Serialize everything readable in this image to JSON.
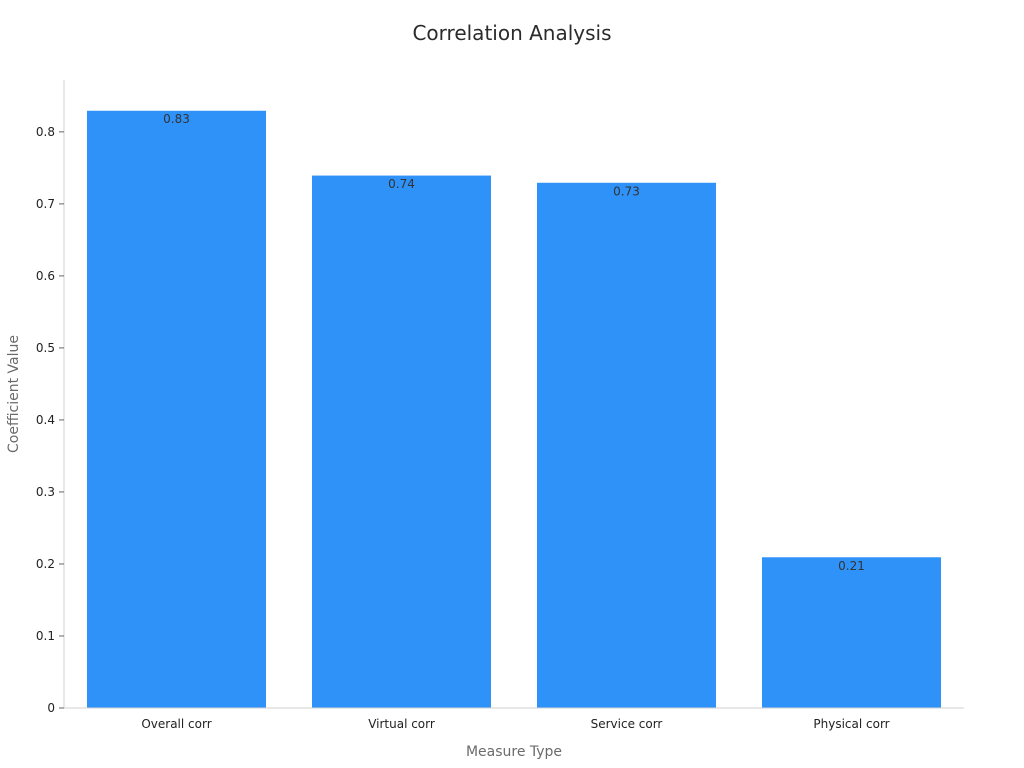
{
  "chart_data": {
    "type": "bar",
    "title": "Correlation Analysis",
    "xlabel": "Measure Type",
    "ylabel": "Coefficient Value",
    "categories": [
      "Overall corr",
      "Virtual corr",
      "Service corr",
      "Physical corr"
    ],
    "values": [
      0.83,
      0.74,
      0.73,
      0.21
    ],
    "data_labels": [
      "0.83",
      "0.74",
      "0.73",
      "0.21"
    ],
    "yticks": [
      0,
      0.1,
      0.2,
      0.3,
      0.4,
      0.5,
      0.6,
      0.7,
      0.8
    ],
    "ytick_labels": [
      "0",
      "0.1",
      "0.2",
      "0.3",
      "0.4",
      "0.5",
      "0.6",
      "0.7",
      "0.8"
    ],
    "ylim": [
      0,
      0.872
    ],
    "grid": false,
    "legend": "none",
    "bar_color": "#2f92f9"
  }
}
